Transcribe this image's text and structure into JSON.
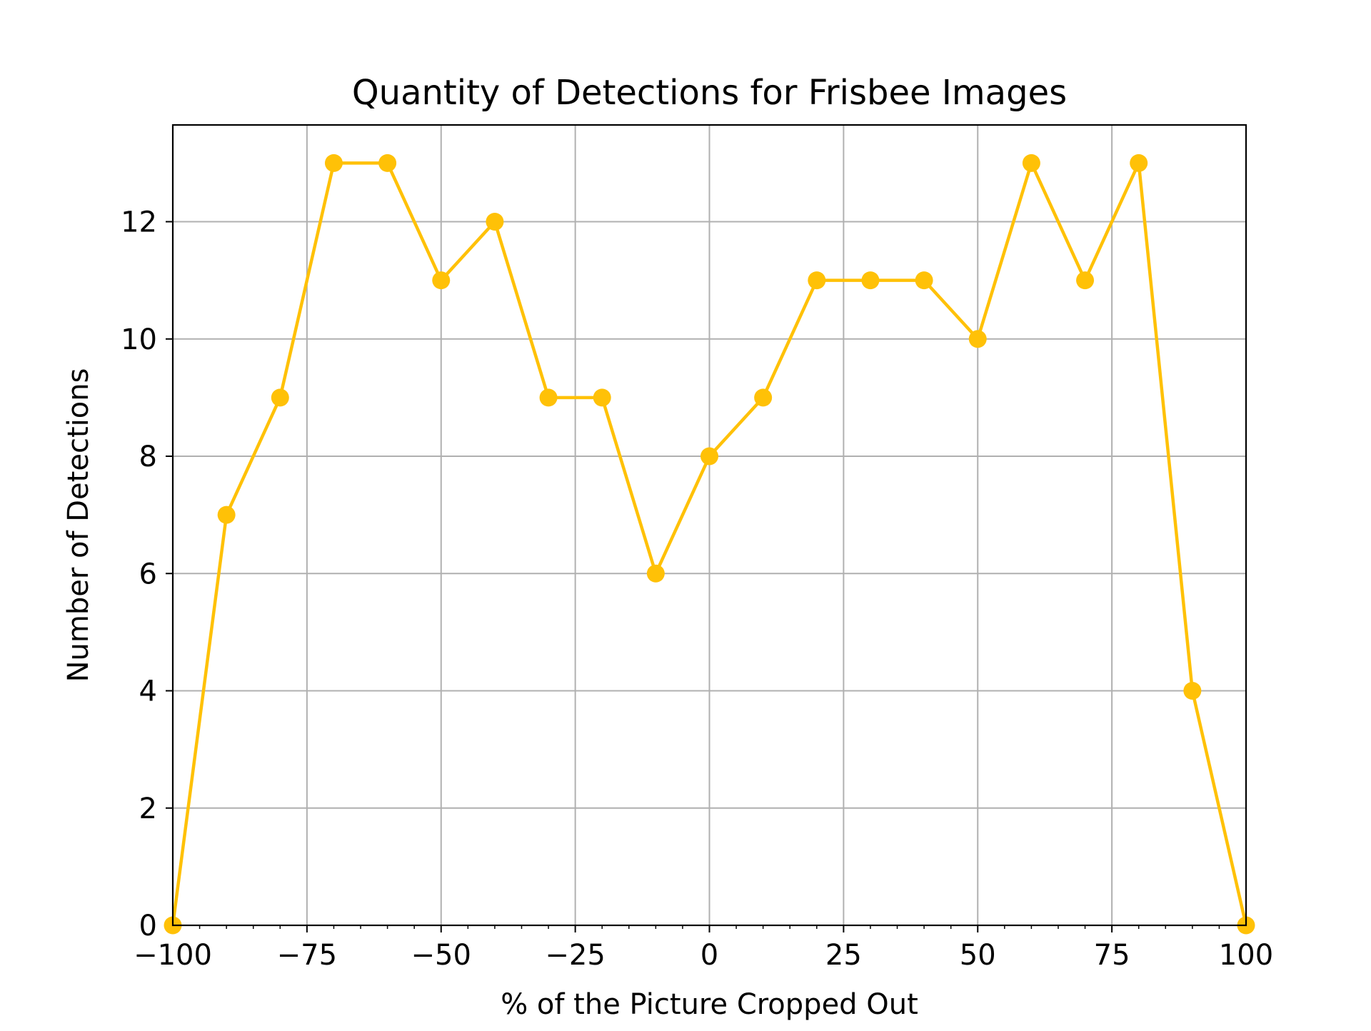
{
  "chart_data": {
    "type": "line",
    "title": "Quantity of Detections for Frisbee Images",
    "xlabel": "% of the Picture Cropped Out",
    "ylabel": "Number of Detections",
    "xlim": [
      -100,
      100
    ],
    "ylim": [
      0,
      13.65
    ],
    "xticks": [
      -100,
      -75,
      -50,
      -25,
      0,
      25,
      50,
      75,
      100
    ],
    "xtick_labels": [
      "−100",
      "−75",
      "−50",
      "−25",
      "0",
      "25",
      "50",
      "75",
      "100"
    ],
    "yticks": [
      0,
      2,
      4,
      6,
      8,
      10,
      12
    ],
    "ytick_labels": [
      "0",
      "2",
      "4",
      "6",
      "8",
      "10",
      "12"
    ],
    "grid": true,
    "color": "#FFC107",
    "series": [
      {
        "x": [
          -100,
          -90,
          -80,
          -70,
          -60,
          -50,
          -40,
          -30,
          -20,
          -10,
          0,
          10,
          20,
          30,
          40,
          50,
          60,
          70,
          80,
          90,
          100
        ],
        "y": [
          0,
          7,
          9,
          13,
          13,
          11,
          12,
          9,
          9,
          6,
          8,
          9,
          11,
          11,
          11,
          10,
          13,
          11,
          13,
          4,
          0
        ]
      }
    ]
  }
}
